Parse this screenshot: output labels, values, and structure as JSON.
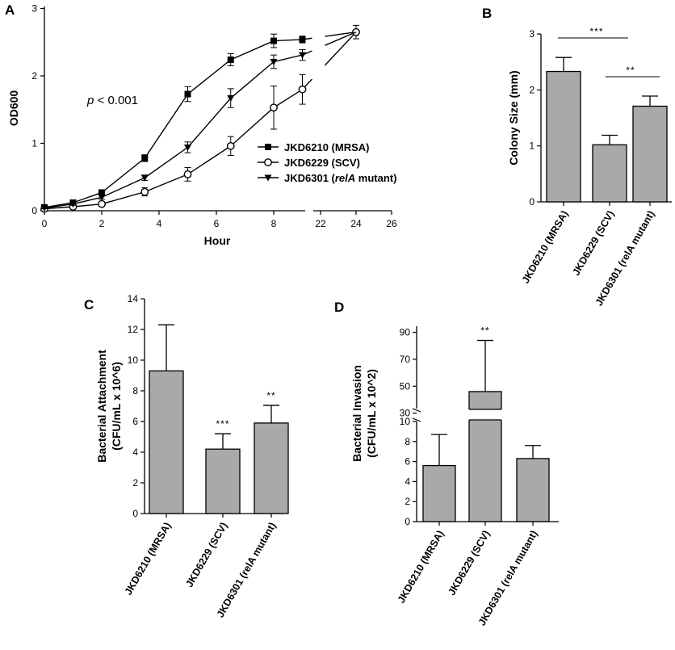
{
  "chart_data": [
    {
      "panel": "A",
      "type": "line",
      "xlabel": "Hour",
      "ylabel": "OD600",
      "x_ticks_left": [
        "0",
        "2",
        "4",
        "6",
        "8"
      ],
      "x_ticks_right": [
        "22",
        "24",
        "26"
      ],
      "y_ticks": [
        "0",
        "1",
        "2",
        "3"
      ],
      "ylim": [
        0,
        3
      ],
      "annotation_italic": "p",
      "annotation_rest": " < 0.001",
      "series": [
        {
          "name": "JKD6210 (MRSA)",
          "name_parts": [
            "JKD6210 (MRSA)"
          ],
          "marker": "square",
          "x": [
            0,
            1,
            2,
            3.5,
            5,
            6.5,
            8,
            9
          ],
          "y": [
            0.05,
            0.12,
            0.27,
            0.78,
            1.73,
            2.24,
            2.52,
            2.54
          ],
          "err": [
            0.02,
            0.03,
            0.04,
            0.05,
            0.11,
            0.09,
            0.1,
            0.05
          ]
        },
        {
          "name": "JKD6229 (SCV)",
          "name_parts": [
            "JKD6229 (SCV)"
          ],
          "marker": "circle",
          "x": [
            0,
            1,
            2,
            3.5,
            5,
            6.5,
            8,
            9,
            24
          ],
          "y": [
            0.03,
            0.06,
            0.1,
            0.28,
            0.54,
            0.96,
            1.53,
            1.8,
            2.65
          ],
          "err": [
            0.01,
            0.02,
            0.03,
            0.06,
            0.1,
            0.14,
            0.32,
            0.22,
            0.1
          ]
        },
        {
          "name": "JKD6301 (relA mutant)",
          "name_parts": [
            "JKD6301 (",
            "relA",
            " mutant)"
          ],
          "marker": "triangle-down",
          "x": [
            0,
            1,
            2,
            3.5,
            5,
            6.5,
            8,
            9
          ],
          "y": [
            0.04,
            0.1,
            0.2,
            0.49,
            0.94,
            1.67,
            2.21,
            2.31
          ],
          "err": [
            0.01,
            0.02,
            0.03,
            0.04,
            0.08,
            0.14,
            0.1,
            0.08
          ]
        }
      ]
    },
    {
      "panel": "B",
      "type": "bar",
      "ylabel": "Colony Size (mm)",
      "categories": [
        "JKD6210 (MRSA)",
        "JKD6229 (SCV)",
        "JKD6301 (relA mutant)"
      ],
      "values": [
        2.33,
        1.02,
        1.71
      ],
      "errors": [
        0.25,
        0.17,
        0.18
      ],
      "ylim": [
        0,
        3
      ],
      "y_ticks": [
        "0",
        "1",
        "2",
        "3"
      ],
      "significance": [
        {
          "label": "***",
          "between": [
            0,
            1
          ]
        },
        {
          "label": "**",
          "between": [
            1,
            2
          ]
        }
      ]
    },
    {
      "panel": "C",
      "type": "bar",
      "ylabel_lines": [
        "Bacterial Attachment",
        "(CFU/mL x 10^6)"
      ],
      "categories": [
        "JKD6210 (MRSA)",
        "JKD6229 (SCV)",
        "JKD6301 (relA mutant)"
      ],
      "values": [
        9.3,
        4.2,
        5.9
      ],
      "errors": [
        3.0,
        1.0,
        1.15
      ],
      "ylim": [
        0,
        14
      ],
      "y_ticks": [
        "0",
        "2",
        "4",
        "6",
        "8",
        "10",
        "12",
        "14"
      ],
      "significance": [
        {
          "label": "***",
          "bar": 1
        },
        {
          "label": "**",
          "bar": 2
        }
      ]
    },
    {
      "panel": "D",
      "type": "bar",
      "ylabel_lines": [
        "Bacterial Invasion",
        "(CFU/mL x 10^2)"
      ],
      "categories": [
        "JKD6210 (MRSA)",
        "JKD6229 (SCV)",
        "JKD6301 (relA mutant)"
      ],
      "values": [
        5.6,
        46,
        6.3
      ],
      "errors": [
        3.1,
        38,
        1.3
      ],
      "broken_axis": true,
      "y_ticks_lower": [
        "0",
        "2",
        "4",
        "6",
        "8",
        "10"
      ],
      "y_ticks_upper": [
        "30",
        "50",
        "70",
        "90"
      ],
      "significance": [
        {
          "label": "**",
          "bar": 1
        }
      ]
    }
  ]
}
